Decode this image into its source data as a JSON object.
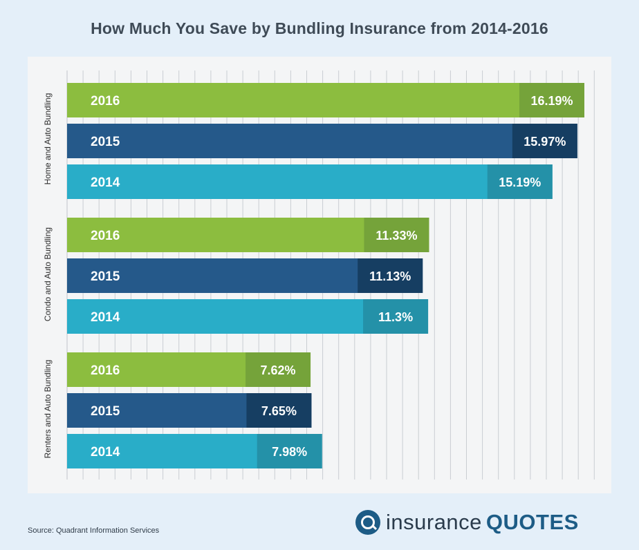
{
  "title": "How Much You Save by Bundling Insurance from 2014-2016",
  "source": "Source: Quadrant Information Services",
  "logo": {
    "part1": "insurance",
    "part2": "QUOTES"
  },
  "colors": {
    "2016": {
      "bar": "#8cbd3f",
      "label": "#75a33a"
    },
    "2015": {
      "bar": "#25598a",
      "label": "#163e62"
    },
    "2014": {
      "bar": "#29adc8",
      "label": "#2491a8"
    },
    "panel": "#f4f5f6",
    "grid": "#c9cdd2",
    "background": "#e4eff9"
  },
  "chart_data": {
    "type": "bar",
    "orientation": "horizontal",
    "title": "How Much You Save by Bundling Insurance from 2014-2016",
    "grid": true,
    "xlim": [
      0,
      17
    ],
    "groups": [
      {
        "name": "Home and Auto Bundling",
        "bars": [
          {
            "year": "2016",
            "value": 16.19,
            "label": "16.19%"
          },
          {
            "year": "2015",
            "value": 15.97,
            "label": "15.97%"
          },
          {
            "year": "2014",
            "value": 15.19,
            "label": "15.19%"
          }
        ]
      },
      {
        "name": "Condo and Auto Bundling",
        "bars": [
          {
            "year": "2016",
            "value": 11.33,
            "label": "11.33%"
          },
          {
            "year": "2015",
            "value": 11.13,
            "label": "11.13%"
          },
          {
            "year": "2014",
            "value": 11.3,
            "label": "11.3%"
          }
        ]
      },
      {
        "name": "Renters and Auto Bundling",
        "bars": [
          {
            "year": "2016",
            "value": 7.62,
            "label": "7.62%"
          },
          {
            "year": "2015",
            "value": 7.65,
            "label": "7.65%"
          },
          {
            "year": "2014",
            "value": 7.98,
            "label": "7.98%"
          }
        ]
      }
    ]
  }
}
